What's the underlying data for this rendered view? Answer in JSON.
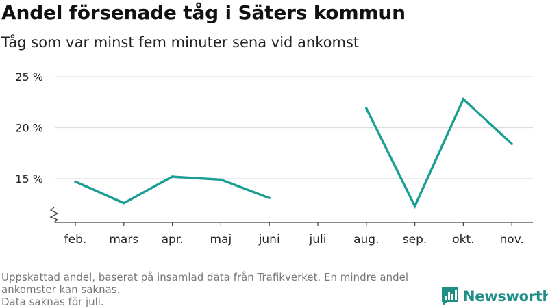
{
  "header": {
    "title": "Andel försenade tåg i Säters kommun",
    "subtitle": "Tåg som var minst fem minuter sena vid ankomst"
  },
  "footnote": {
    "line1": "Uppskattad andel, baserat på insamlad data från Trafikverket. En mindre andel ankomster kan saknas.",
    "line2": "Data saknas för juli."
  },
  "brand": {
    "name": "Newsworthy",
    "icon": "bar-chart-logo-icon",
    "color": "#1f8f86"
  },
  "chart_data": {
    "type": "line",
    "categories": [
      "feb.",
      "mars",
      "apr.",
      "maj",
      "juni",
      "juli",
      "aug.",
      "sep.",
      "okt.",
      "nov."
    ],
    "series": [
      {
        "values": [
          14.7,
          12.6,
          15.2,
          14.9,
          13.1,
          null,
          21.9,
          12.3,
          22.8,
          18.4
        ]
      }
    ],
    "ylim": [
      10.7,
      25
    ],
    "yticks": [
      15,
      20,
      25
    ],
    "ytick_labels": [
      "15 %",
      "20 %",
      "25 %"
    ],
    "y_axis_break": true,
    "grid": true,
    "line_color": "#1a9e93",
    "grid_color": "#dddddd",
    "xlabel": "",
    "ylabel": ""
  }
}
